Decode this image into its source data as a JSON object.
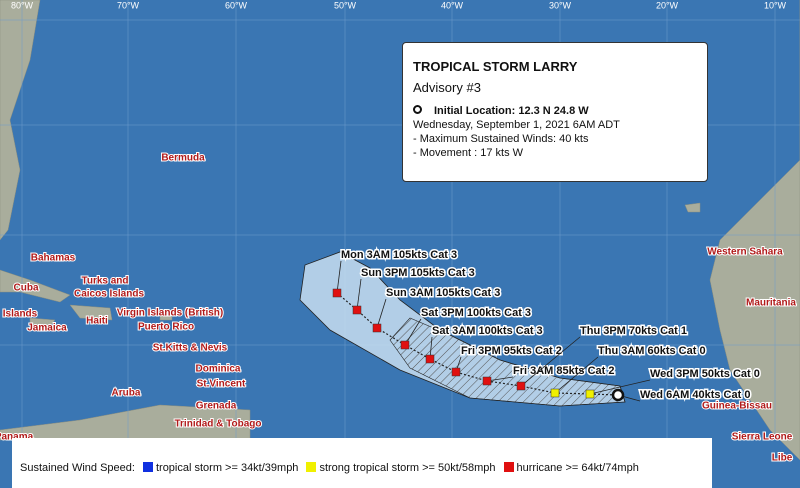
{
  "map": {
    "longitude_labels": [
      "80°W",
      "70°W",
      "60°W",
      "50°W",
      "40°W",
      "30°W",
      "20°W",
      "10°W"
    ],
    "places": [
      "Bermuda",
      "Bahamas",
      "Cuba",
      "Turks and",
      "Caicos Islands",
      "Haiti",
      "Islands",
      "Jamaica",
      "Virgin Islands (British)",
      "Puerto Rico",
      "St.Kitts & Nevis",
      "Dominica",
      "St.Vincent",
      "Aruba",
      "Grenada",
      "Trinidad & Tobago",
      "Panama",
      "Western Sahara",
      "Mauritania",
      "Guinea-Bissau",
      "Sierra Leone",
      "Libe"
    ]
  },
  "info_box": {
    "title": "TROPICAL STORM LARRY",
    "subtitle": "Advisory #3",
    "initial_location": "Initial Location: 12.3 N 24.8 W",
    "date": "Wednesday, September 1, 2021  6AM ADT",
    "winds": "- Maximum Sustained Winds: 40 kts",
    "movement": "- Movement : 17 kts W"
  },
  "forecast": [
    "Mon 3AM 105kts Cat 3",
    "Sun 3PM 105kts Cat 3",
    "Sun 3AM 105kts Cat 3",
    "Sat 3PM 100kts Cat 3",
    "Sat 3AM 100kts Cat 3",
    "Fri 3PM 95kts Cat 2",
    "Fri 3AM 85kts Cat 2",
    "Thu 3PM 70kts Cat 1",
    "Thu 3AM 60kts Cat 0",
    "Wed 3PM 50kts Cat 0",
    "Wed 6AM 40kts Cat 0"
  ],
  "legend": {
    "title": "Sustained Wind Speed:",
    "items": [
      {
        "label": "tropical storm >= 34kt/39mph",
        "color": "#1030e0"
      },
      {
        "label": "strong tropical storm >= 50kt/58mph",
        "color": "#f0f000"
      },
      {
        "label": "hurricane >= 64kt/74mph",
        "color": "#e01010"
      }
    ]
  }
}
